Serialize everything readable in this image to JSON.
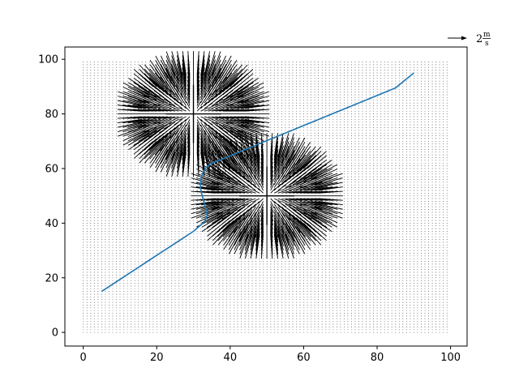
{
  "chart_data": {
    "type": "quiver",
    "title": "",
    "xlabel": "",
    "ylabel": "",
    "xlim": [
      -5,
      104.5
    ],
    "ylim": [
      -5,
      104.5
    ],
    "xticks": [
      "0",
      "20",
      "40",
      "60",
      "80",
      "100"
    ],
    "yticks": [
      "0",
      "20",
      "40",
      "60",
      "80",
      "100"
    ],
    "xtick_values": [
      0,
      20,
      40,
      60,
      80,
      100
    ],
    "ytick_values": [
      0,
      20,
      40,
      60,
      80,
      100
    ],
    "field_grid": {
      "start": 0,
      "end": 99,
      "step": 1
    },
    "obstacles": [
      {
        "center": [
          30,
          80
        ],
        "radius": 15
      },
      {
        "center": [
          50,
          50
        ],
        "radius": 15
      }
    ],
    "quiver_key": {
      "magnitude": 2,
      "label": "2",
      "unit_num": "m",
      "unit_den": "s"
    },
    "line_color": "#1f77b4",
    "path": {
      "name": "",
      "x": [
        5,
        10,
        15,
        20,
        25,
        30,
        33,
        33.8,
        33.2,
        32.4,
        31.9,
        32,
        32.6,
        33.5,
        35,
        38,
        45,
        55,
        65,
        75,
        85,
        90
      ],
      "y": [
        15,
        19.4,
        23.8,
        28.2,
        32.6,
        37,
        40.5,
        43,
        46,
        50,
        53,
        56,
        58.5,
        60.5,
        62,
        63.5,
        67.5,
        73,
        78.5,
        84,
        89.5,
        95
      ]
    }
  }
}
